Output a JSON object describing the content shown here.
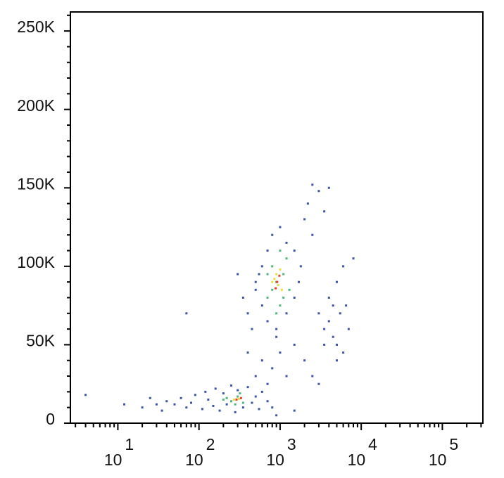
{
  "chart_data": {
    "type": "scatter",
    "xlog": true,
    "xlim": [
      2.6,
      316000
    ],
    "ylim": [
      0,
      262144
    ],
    "xticks": [
      {
        "value": 10,
        "label": "10",
        "sup": "1"
      },
      {
        "value": 100,
        "label": "10",
        "sup": "2"
      },
      {
        "value": 1000,
        "label": "10",
        "sup": "3"
      },
      {
        "value": 10000,
        "label": "10",
        "sup": "4"
      },
      {
        "value": 100000,
        "label": "10",
        "sup": "5"
      }
    ],
    "xminorticks": [
      3,
      4,
      5,
      6,
      7,
      8,
      9,
      20,
      30,
      40,
      50,
      60,
      70,
      80,
      90,
      200,
      300,
      400,
      500,
      600,
      700,
      800,
      900,
      2000,
      3000,
      4000,
      5000,
      6000,
      7000,
      8000,
      9000,
      20000,
      30000,
      40000,
      50000,
      60000,
      70000,
      80000,
      90000,
      200000,
      300000
    ],
    "yticks": [
      0,
      {
        "value": 50000,
        "label": "50K"
      },
      {
        "value": 100000,
        "label": "100K"
      },
      {
        "value": 150000,
        "label": "150K"
      },
      {
        "value": 200000,
        "label": "200K"
      },
      {
        "value": 250000,
        "label": "250K"
      }
    ],
    "yminorticks": [
      10000,
      20000,
      30000,
      40000,
      60000,
      70000,
      80000,
      90000,
      110000,
      120000,
      130000,
      140000,
      160000,
      170000,
      180000,
      190000,
      210000,
      220000,
      230000,
      240000,
      260000
    ],
    "series": [
      {
        "color": "#3b54a4",
        "x": [
          40,
          50,
          60,
          70,
          80,
          90,
          110,
          120,
          130,
          150,
          160,
          180,
          200,
          220,
          250,
          280,
          300,
          350,
          400,
          450,
          500,
          550,
          600,
          30,
          20,
          12,
          4,
          25,
          35,
          700,
          800,
          1500,
          900,
          500,
          600,
          700,
          400,
          800,
          1000,
          1200,
          1500,
          900,
          2000,
          2500,
          3000,
          350,
          400,
          450,
          500,
          70,
          300,
          600,
          700,
          800,
          1000,
          1200,
          1500,
          1800,
          600,
          700,
          900,
          1200,
          1500,
          1700,
          500,
          550,
          2000,
          2500,
          2200,
          2500,
          3000,
          4000,
          3500,
          3000,
          3500,
          4000,
          4500,
          5000,
          5500,
          6000,
          4000,
          5000,
          6000,
          7000,
          3500,
          4500,
          5000,
          8000,
          6500
        ],
        "values": [
          14000,
          12000,
          16000,
          10000,
          13000,
          18000,
          9000,
          20000,
          15000,
          11000,
          22000,
          8000,
          19000,
          12000,
          24000,
          7000,
          21000,
          10000,
          23000,
          13000,
          17000,
          9000,
          20000,
          12000,
          10000,
          12000,
          18000,
          16000,
          8000,
          14000,
          10000,
          8000,
          5000,
          30000,
          40000,
          25000,
          45000,
          35000,
          45000,
          30000,
          50000,
          55000,
          40000,
          30000,
          25000,
          80000,
          70000,
          60000,
          90000,
          70000,
          95000,
          100000,
          110000,
          120000,
          125000,
          115000,
          110000,
          100000,
          75000,
          65000,
          60000,
          70000,
          80000,
          90000,
          85000,
          95000,
          130000,
          120000,
          140000,
          152000,
          148000,
          150000,
          135000,
          70000,
          60000,
          65000,
          55000,
          50000,
          70000,
          45000,
          80000,
          90000,
          100000,
          60000,
          50000,
          75000,
          40000,
          105000,
          75000
        ]
      },
      {
        "color": "#4fb57a",
        "x": [
          250,
          300,
          350,
          200,
          280,
          320,
          220,
          700,
          800,
          900,
          1000,
          1100,
          1200,
          900,
          800,
          1000,
          1300,
          700,
          1100
        ],
        "values": [
          14000,
          17000,
          13000,
          15000,
          12000,
          19000,
          16000,
          80000,
          100000,
          90000,
          75000,
          95000,
          105000,
          70000,
          85000,
          110000,
          85000,
          95000,
          80000
        ]
      },
      {
        "color": "#e6e03a",
        "x": [
          270,
          310,
          850,
          950,
          1000,
          900,
          1050,
          800
        ],
        "values": [
          15000,
          15500,
          92000,
          88000,
          98000,
          95000,
          85000,
          90000
        ]
      },
      {
        "color": "#e8412a",
        "x": [
          290,
          330,
          920,
          980,
          880
        ],
        "values": [
          15000,
          16000,
          90000,
          94000,
          86000
        ]
      }
    ]
  }
}
